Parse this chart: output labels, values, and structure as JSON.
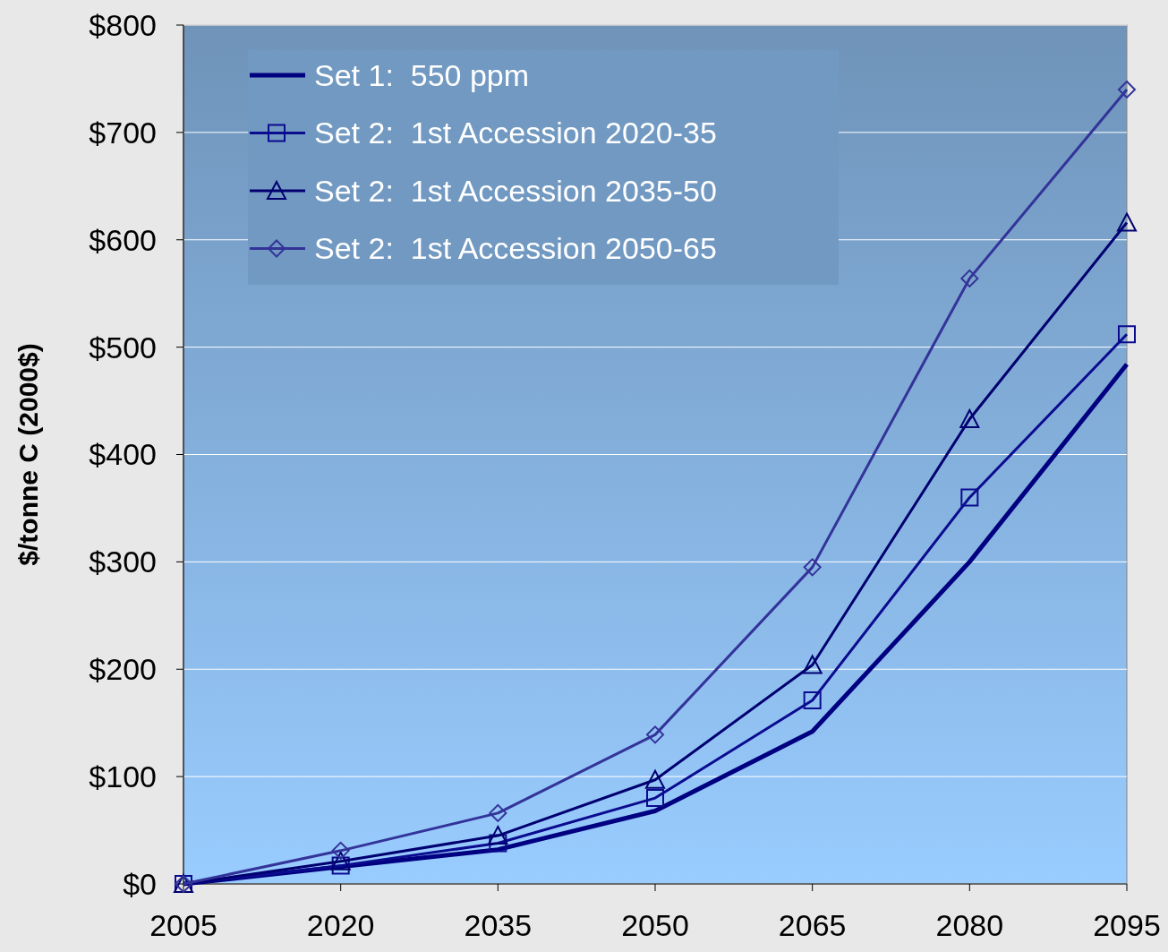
{
  "chart_data": {
    "type": "line",
    "ylabel": "$/tonne C (2000$)",
    "x": [
      2005,
      2020,
      2035,
      2050,
      2065,
      2080,
      2095
    ],
    "xlim": [
      2005,
      2095
    ],
    "xticks": [
      2005,
      2020,
      2035,
      2050,
      2065,
      2080,
      2095
    ],
    "ylim": [
      0,
      800
    ],
    "yticks": [
      {
        "value": 0,
        "label": "$0"
      },
      {
        "value": 100,
        "label": "$100"
      },
      {
        "value": 200,
        "label": "$200"
      },
      {
        "value": 300,
        "label": "$300"
      },
      {
        "value": 400,
        "label": "$400"
      },
      {
        "value": 500,
        "label": "$500"
      },
      {
        "value": 600,
        "label": "$600"
      },
      {
        "value": 700,
        "label": "$700"
      },
      {
        "value": 800,
        "label": "$800"
      }
    ],
    "grid": "y",
    "legend": "top left",
    "line_style": "solid",
    "series": [
      {
        "name": "Set 1:  550 ppm",
        "color": "#000080",
        "marker": "none",
        "values": [
          0,
          16,
          32,
          68,
          142,
          300,
          484
        ]
      },
      {
        "name": "Set 2:  1st Accession 2020-35",
        "color": "#0b0b8f",
        "marker": "square",
        "values": [
          0,
          17,
          38,
          80,
          171,
          360,
          512
        ]
      },
      {
        "name": "Set 2:  1st Accession 2035-50",
        "color": "#000070",
        "marker": "triangle",
        "values": [
          0,
          21,
          45,
          97,
          204,
          433,
          616
        ]
      },
      {
        "name": "Set 2:  1st Accession 2050-65",
        "color": "#333399",
        "marker": "diamond",
        "values": [
          0,
          31,
          66,
          139,
          295,
          564,
          740
        ]
      }
    ]
  }
}
